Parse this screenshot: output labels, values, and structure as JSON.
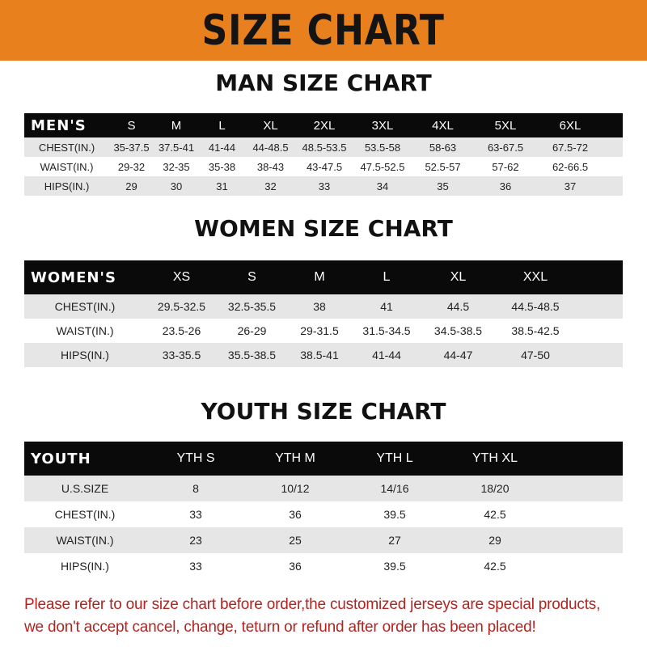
{
  "banner": {
    "title": "SIZE CHART",
    "color": "#e8801e"
  },
  "men": {
    "title": "MAN SIZE CHART",
    "header": [
      "MEN'S",
      "S",
      "M",
      "L",
      "XL",
      "2XL",
      "3XL",
      "4XL",
      "5XL",
      "6XL"
    ],
    "rows": [
      [
        "CHEST(IN.)",
        "35-37.5",
        "37.5-41",
        "41-44",
        "44-48.5",
        "48.5-53.5",
        "53.5-58",
        "58-63",
        "63-67.5",
        "67.5-72"
      ],
      [
        "WAIST(IN.)",
        "29-32",
        "32-35",
        "35-38",
        "38-43",
        "43-47.5",
        "47.5-52.5",
        "52.5-57",
        "57-62",
        "62-66.5"
      ],
      [
        "HIPS(IN.)",
        "29",
        "30",
        "31",
        "32",
        "33",
        "34",
        "35",
        "36",
        "37"
      ]
    ]
  },
  "women": {
    "title": "WOMEN SIZE CHART",
    "header": [
      "WOMEN'S",
      "XS",
      "S",
      "M",
      "L",
      "XL",
      "XXL"
    ],
    "rows": [
      [
        "CHEST(IN.)",
        "29.5-32.5",
        "32.5-35.5",
        "38",
        "41",
        "44.5",
        "44.5-48.5"
      ],
      [
        "WAIST(IN.)",
        "23.5-26",
        "26-29",
        "29-31.5",
        "31.5-34.5",
        "34.5-38.5",
        "38.5-42.5"
      ],
      [
        "HIPS(IN.)",
        "33-35.5",
        "35.5-38.5",
        "38.5-41",
        "41-44",
        "44-47",
        "47-50"
      ]
    ]
  },
  "youth": {
    "title": "YOUTH SIZE CHART",
    "header": [
      "YOUTH",
      "YTH S",
      "YTH M",
      "YTH L",
      "YTH XL"
    ],
    "rows": [
      [
        "U.S.SIZE",
        "8",
        "10/12",
        "14/16",
        "18/20"
      ],
      [
        "CHEST(IN.)",
        "33",
        "36",
        "39.5",
        "42.5"
      ],
      [
        "WAIST(IN.)",
        "23",
        "25",
        "27",
        "29"
      ],
      [
        "HIPS(IN.)",
        "33",
        "36",
        "39.5",
        "42.5"
      ]
    ]
  },
  "note": {
    "line1": "Please refer to our size chart before order,the customized jerseys are special products,",
    "line2": "we don't accept cancel, change, teturn or refund after order has been placed!",
    "color": "#b3231f"
  }
}
